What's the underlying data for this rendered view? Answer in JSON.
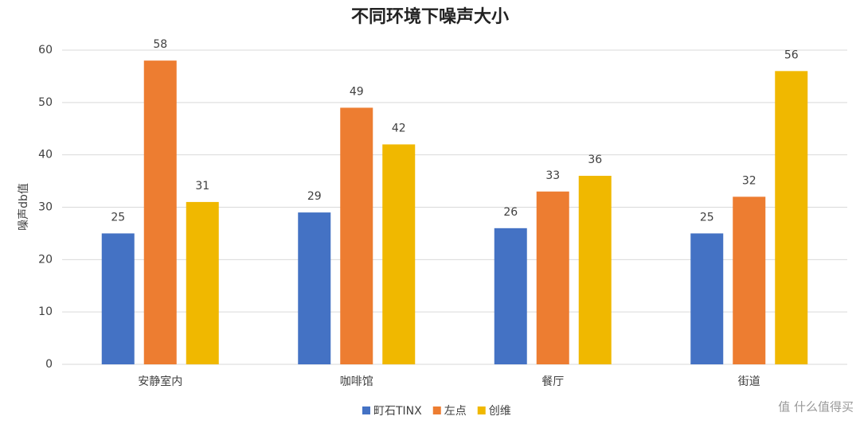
{
  "chart_data": {
    "type": "bar",
    "title": "不同环境下噪声大小",
    "y_label": "噪声db值",
    "categories": [
      "安静室内",
      "咖啡馆",
      "餐厅",
      "街道"
    ],
    "series": [
      {
        "name": "町石TINX",
        "color": "#4472c4",
        "values": [
          25,
          29,
          26,
          25
        ]
      },
      {
        "name": "左点",
        "color": "#ed7d31",
        "values": [
          58,
          49,
          33,
          32
        ]
      },
      {
        "name": "创维",
        "color": "#f0b800",
        "values": [
          31,
          42,
          36,
          56
        ]
      }
    ],
    "ylim": [
      0,
      60
    ],
    "yticks": [
      0,
      10,
      20,
      30,
      40,
      50,
      60
    ],
    "grid": true,
    "legend": "bottom",
    "watermark": "值 什么值得买"
  }
}
